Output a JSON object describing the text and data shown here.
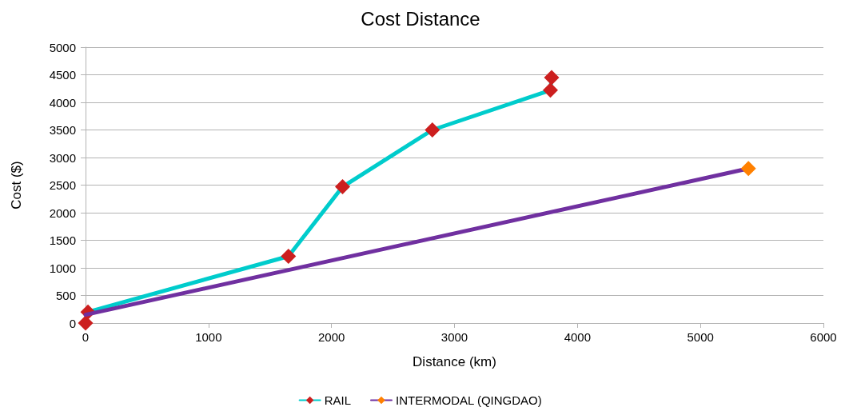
{
  "chart_data": {
    "type": "line",
    "title": "Cost Distance",
    "xlabel": "Distance (km)",
    "ylabel": "Cost ($)",
    "series": [
      {
        "name": "RAIL",
        "color": "#00cccc",
        "colors": [
          "#cc1f1f",
          "#cc1f1f",
          "#cc1f1f",
          "#cc1f1f",
          "#cc1f1f",
          "#cc1f1f",
          "#cc1f1f"
        ],
        "x": [
          0,
          20,
          1650,
          2090,
          2820,
          3780,
          3790
        ],
        "values": [
          0,
          200,
          1210,
          2470,
          3500,
          4220,
          4450
        ]
      },
      {
        "name": "INTERMODAL (QINGDAO)",
        "color": "#7030a0",
        "colors": [
          null,
          "#ff8000"
        ],
        "x": [
          0,
          5390
        ],
        "values": [
          150,
          2800
        ]
      }
    ],
    "xlim": [
      0,
      6000
    ],
    "xticks": [
      0,
      1000,
      2000,
      3000,
      4000,
      5000,
      6000
    ],
    "ylim": [
      0,
      5000
    ],
    "yticks": [
      0,
      500,
      1000,
      1500,
      2000,
      2500,
      3000,
      3500,
      4000,
      4500,
      5000
    ],
    "grid": "y",
    "legend": "bottom",
    "marker": "diamond",
    "line_style": "solid"
  }
}
